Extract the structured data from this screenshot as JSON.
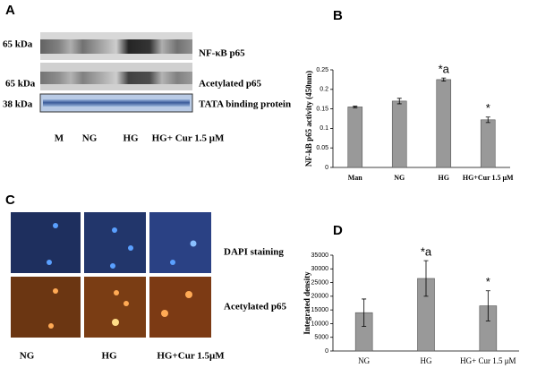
{
  "panel_a": {
    "label": "A",
    "rows": [
      {
        "size": "65 kDa",
        "name": "NF-κB p65"
      },
      {
        "size": "65 kDa",
        "name": "Acetylated p65"
      },
      {
        "size": "38 kDa",
        "name": "TATA binding protein"
      }
    ],
    "lanes": [
      "M",
      "NG",
      "HG",
      "HG+ Cur 1.5 μM"
    ]
  },
  "panel_b": {
    "label": "B"
  },
  "panel_c": {
    "label": "C",
    "rows": [
      "DAPI staining",
      "Acetylated p65"
    ],
    "columns": [
      "NG",
      "HG",
      "HG+Cur 1.5μM"
    ]
  },
  "panel_d": {
    "label": "D"
  },
  "chart_data": [
    {
      "type": "bar",
      "ylabel": "NF-kB p65 activity (450nm)",
      "categories": [
        "Man",
        "NG",
        "HG",
        "HG+Cur 1.5 μM"
      ],
      "values": [
        0.155,
        0.17,
        0.225,
        0.122
      ],
      "errors": [
        0.002,
        0.007,
        0.004,
        0.007
      ],
      "annotations": [
        null,
        null,
        "*a",
        "*"
      ],
      "color": "#999999",
      "ylim": [
        0,
        0.25
      ],
      "yticks": [
        0,
        0.05,
        0.1,
        0.15,
        0.2,
        0.25
      ]
    },
    {
      "type": "bar",
      "ylabel": "Integrated density",
      "categories": [
        "NG",
        "HG",
        "HG+ Cur 1.5 μM"
      ],
      "values": [
        14000,
        26500,
        16500
      ],
      "errors": [
        5000,
        6500,
        5500
      ],
      "annotations": [
        null,
        "*a",
        "*"
      ],
      "color": "#999999",
      "ylim": [
        0,
        35000
      ],
      "yticks": [
        0,
        5000,
        10000,
        15000,
        20000,
        25000,
        30000,
        35000
      ]
    }
  ]
}
